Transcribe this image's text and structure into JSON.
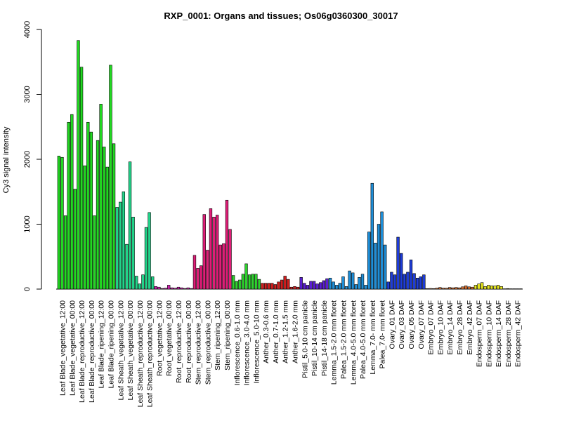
{
  "chart_data": {
    "type": "bar",
    "title": "RXP_0001: Organs and tissues; Os06g0360300_30017",
    "xlabel": "",
    "ylabel": "Cy3 signal intensity",
    "ylim": [
      0,
      4000
    ],
    "yticks": [
      0,
      1000,
      2000,
      3000,
      4000
    ],
    "grid": false,
    "legend": "none",
    "groups": [
      {
        "label": "Leaf Blade_vegetative_12:00",
        "color": "#22d822",
        "values": [
          2050,
          2030,
          1130
        ]
      },
      {
        "label": "Leaf Blade_vegetative_00:00",
        "color": "#22d822",
        "values": [
          2570,
          2690,
          1540
        ]
      },
      {
        "label": "Leaf Blade_reproductive_12:00",
        "color": "#22d822",
        "values": [
          3830,
          3420,
          1900
        ]
      },
      {
        "label": "Leaf Blade_reproductive_00:00",
        "color": "#22d822",
        "values": [
          2570,
          2420,
          1130
        ]
      },
      {
        "label": "Leaf Blade_ripening_12:00",
        "color": "#22d822",
        "values": [
          2290,
          2850,
          2190
        ]
      },
      {
        "label": "Leaf Blade_ripening_00:00",
        "color": "#22d822",
        "values": [
          1880,
          3450,
          2240
        ]
      },
      {
        "label": "Leaf Sheath_vegetative_12:00",
        "color": "#22d48a",
        "values": [
          1260,
          1340,
          1500
        ]
      },
      {
        "label": "Leaf Sheath_vegetative_00:00",
        "color": "#22d48a",
        "values": [
          690,
          1960,
          1110
        ]
      },
      {
        "label": "Leaf Sheath_reproductive_12:00",
        "color": "#22d48a",
        "values": [
          200,
          80,
          220
        ]
      },
      {
        "label": "Leaf Sheath_reproductive_00:00",
        "color": "#22d48a",
        "values": [
          950,
          1180,
          190
        ]
      },
      {
        "label": "Root_vegetative_12:00",
        "color": "#d020b0",
        "values": [
          40,
          30,
          10
        ]
      },
      {
        "label": "Root_vegetative_00:00",
        "color": "#d020b0",
        "values": [
          15,
          60,
          20
        ]
      },
      {
        "label": "Root_reproductive_12:00",
        "color": "#d020b0",
        "values": [
          15,
          30,
          20
        ]
      },
      {
        "label": "Root_reproductive_00:00",
        "color": "#d020b0",
        "values": [
          10,
          20,
          10
        ]
      },
      {
        "label": "Stem_reproductive_12:00",
        "color": "#e01e78",
        "values": [
          520,
          320,
          360
        ]
      },
      {
        "label": "Stem_reproductive_00:00",
        "color": "#e01e78",
        "values": [
          1150,
          600,
          1240
        ]
      },
      {
        "label": "Stem_ripening_12:00",
        "color": "#e01e78",
        "values": [
          1110,
          1140,
          680
        ]
      },
      {
        "label": "Stem_ripening_00:00",
        "color": "#e01e78",
        "values": [
          700,
          1370,
          920
        ]
      },
      {
        "label": "Inflorescence_0.6-1.0 mm",
        "color": "#2ed22e",
        "values": [
          210,
          120,
          140
        ]
      },
      {
        "label": "Inflorescence_3.0-4.0 mm",
        "color": "#2ed22e",
        "values": [
          230,
          390,
          220
        ]
      },
      {
        "label": "Inflorescence_5.0-10 mm",
        "color": "#2ed22e",
        "values": [
          230,
          230,
          150
        ]
      },
      {
        "label": "Anther_0.3-0.6 mm",
        "color": "#d01e1e",
        "values": [
          90,
          90,
          90
        ]
      },
      {
        "label": "Anther_0.7-1.0 mm",
        "color": "#d01e1e",
        "values": [
          90,
          70,
          110
        ]
      },
      {
        "label": "Anther_1.2-1.5 mm",
        "color": "#d01e1e",
        "values": [
          140,
          200,
          150
        ]
      },
      {
        "label": "Anther_1.6-2.0 mm",
        "color": "#d01e1e",
        "values": [
          30,
          40,
          30
        ]
      },
      {
        "label": "Pistil_5.0-10 cm panicle",
        "color": "#5b1ed4",
        "values": [
          180,
          90,
          60
        ]
      },
      {
        "label": "Pistil_10-14 cm panicle",
        "color": "#5b1ed4",
        "values": [
          120,
          120,
          80
        ]
      },
      {
        "label": "Pistil_14-18 cm panicle",
        "color": "#5b1ed4",
        "values": [
          100,
          130,
          160
        ]
      },
      {
        "label": "Lemma_1.5-2.0 mm floret",
        "color": "#1e8ed8",
        "values": [
          170,
          110,
          60
        ]
      },
      {
        "label": "Palea_1.5-2.0 mm floret",
        "color": "#1e8ed8",
        "values": [
          90,
          190,
          40
        ]
      },
      {
        "label": "Lemma_4.0-5.0 mm floret",
        "color": "#1e8ed8",
        "values": [
          280,
          250,
          70
        ]
      },
      {
        "label": "Palea_4.0-5.0 mm floret",
        "color": "#1e8ed8",
        "values": [
          180,
          230,
          60
        ]
      },
      {
        "label": "Lemma_7.0- mm floret",
        "color": "#1e8ed8",
        "values": [
          880,
          1630,
          710
        ]
      },
      {
        "label": "Palea_7.0- mm floret",
        "color": "#1e8ed8",
        "values": [
          1000,
          1190,
          680
        ]
      },
      {
        "label": "Ovary_01 DAF",
        "color": "#1e3cd8",
        "values": [
          110,
          260,
          220
        ]
      },
      {
        "label": "Ovary_03 DAF",
        "color": "#1e3cd8",
        "values": [
          800,
          550,
          230
        ]
      },
      {
        "label": "Ovary_05 DAF",
        "color": "#1e3cd8",
        "values": [
          260,
          450,
          240
        ]
      },
      {
        "label": "Ovary_07 DAF",
        "color": "#1e3cd8",
        "values": [
          170,
          190,
          220
        ]
      },
      {
        "label": "Embryo_07 DAF",
        "color": "#d87030",
        "values": [
          8,
          10,
          8
        ]
      },
      {
        "label": "Embryo_10 DAF",
        "color": "#d87030",
        "values": [
          15,
          25,
          15
        ]
      },
      {
        "label": "Embryo_14 DAF",
        "color": "#d87030",
        "values": [
          15,
          25,
          20
        ]
      },
      {
        "label": "Embryo_28 DAF",
        "color": "#d87030",
        "values": [
          25,
          20,
          35
        ]
      },
      {
        "label": "Embryo_42 DAF",
        "color": "#d87030",
        "values": [
          50,
          35,
          30
        ]
      },
      {
        "label": "Endosperm_07 DAF",
        "color": "#e6e61e",
        "values": [
          60,
          80,
          100
        ]
      },
      {
        "label": "Endosperm_10 DAF",
        "color": "#e6e61e",
        "values": [
          40,
          60,
          50
        ]
      },
      {
        "label": "Endosperm_14 DAF",
        "color": "#e6e61e",
        "values": [
          50,
          60,
          40
        ]
      },
      {
        "label": "Endosperm_28 DAF",
        "color": "#e6e61e",
        "values": [
          5,
          8,
          5
        ]
      },
      {
        "label": "Endosperm_42 DAF",
        "color": "#e6e61e",
        "values": [
          5,
          5,
          5
        ]
      }
    ]
  }
}
